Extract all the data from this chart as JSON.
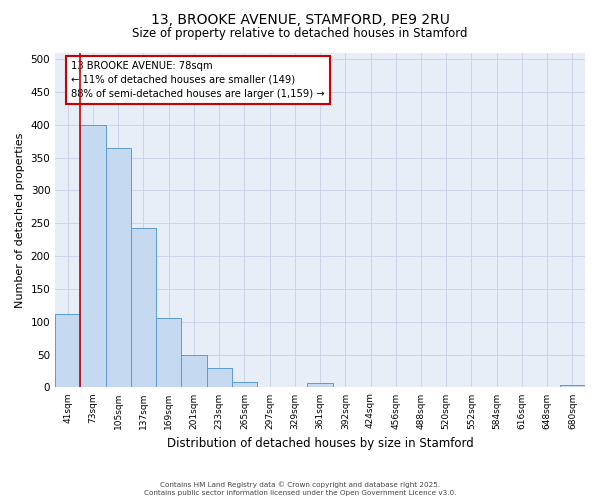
{
  "title_line1": "13, BROOKE AVENUE, STAMFORD, PE9 2RU",
  "title_line2": "Size of property relative to detached houses in Stamford",
  "xlabel": "Distribution of detached houses by size in Stamford",
  "ylabel": "Number of detached properties",
  "categories": [
    "41sqm",
    "73sqm",
    "105sqm",
    "137sqm",
    "169sqm",
    "201sqm",
    "233sqm",
    "265sqm",
    "297sqm",
    "329sqm",
    "361sqm",
    "392sqm",
    "424sqm",
    "456sqm",
    "488sqm",
    "520sqm",
    "552sqm",
    "584sqm",
    "616sqm",
    "648sqm",
    "680sqm"
  ],
  "values": [
    112,
    400,
    365,
    243,
    105,
    50,
    30,
    8,
    0,
    0,
    6,
    0,
    0,
    0,
    0,
    0,
    0,
    0,
    0,
    0,
    3
  ],
  "bar_color": "#c5d9f1",
  "bar_edge_color": "#5b9bd5",
  "red_line_x": 0.5,
  "annotation_title": "13 BROOKE AVENUE: 78sqm",
  "annotation_line2": "← 11% of detached houses are smaller (149)",
  "annotation_line3": "88% of semi-detached houses are larger (1,159) →",
  "annotation_box_color": "#cc0000",
  "ylim": [
    0,
    510
  ],
  "yticks": [
    0,
    50,
    100,
    150,
    200,
    250,
    300,
    350,
    400,
    450,
    500
  ],
  "background_color": "#e8eef8",
  "grid_color": "#c8d0e8",
  "footer_line1": "Contains HM Land Registry data © Crown copyright and database right 2025.",
  "footer_line2": "Contains public sector information licensed under the Open Government Licence v3.0."
}
